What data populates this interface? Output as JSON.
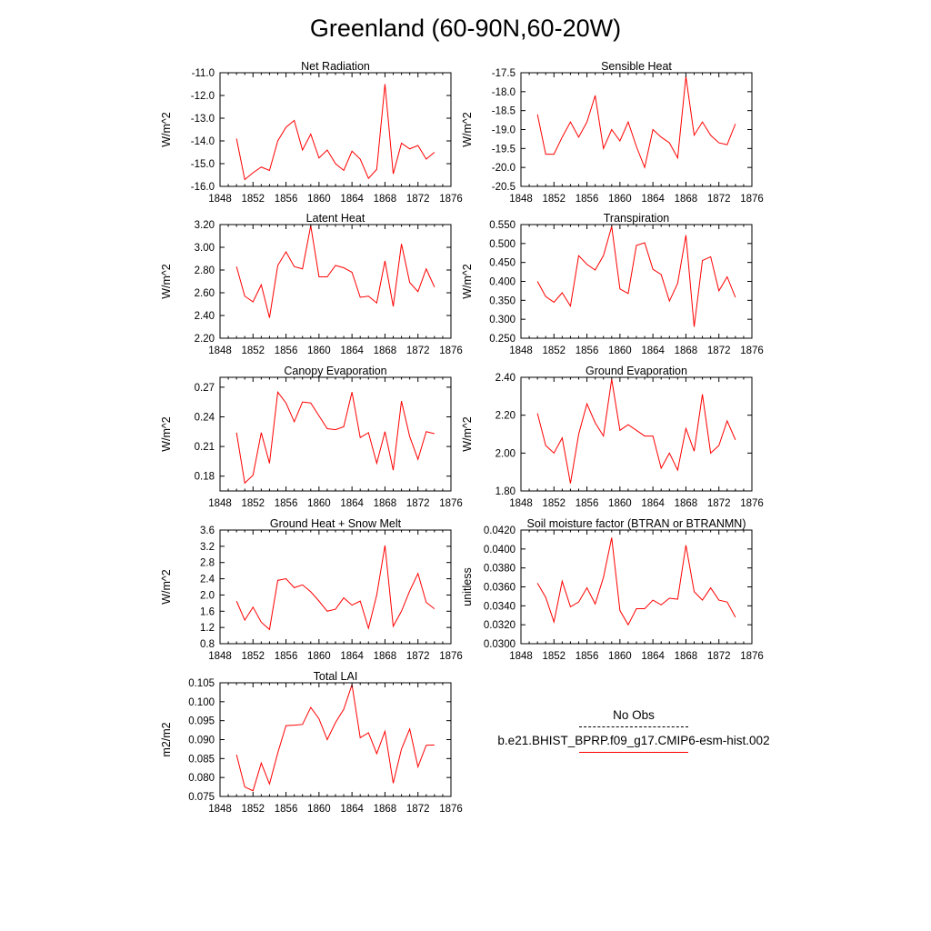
{
  "title": "Greenland (60-90N,60-20W)",
  "legend": {
    "entries": [
      {
        "name": "No Obs",
        "style": "dashed",
        "color": "#000000"
      },
      {
        "name": "b.e21.BHIST_BPRP.f09_g17.CMIP6-esm-hist.002",
        "style": "solid",
        "color": "#ff0000"
      }
    ]
  },
  "chart_data": [
    {
      "type": "line",
      "title": "Net Radiation",
      "ylabel": "W/m^2",
      "xlim": [
        1848,
        1876
      ],
      "xticks": [
        1848,
        1852,
        1856,
        1860,
        1864,
        1868,
        1872,
        1876
      ],
      "ylim": [
        -16.0,
        -11.0
      ],
      "yticks": [
        "-16.0",
        "-15.0",
        "-14.0",
        "-13.0",
        "-12.0",
        "-11.0"
      ],
      "x": [
        1850,
        1851,
        1852,
        1853,
        1854,
        1855,
        1856,
        1857,
        1858,
        1859,
        1860,
        1861,
        1862,
        1863,
        1864,
        1865,
        1866,
        1867,
        1868,
        1869,
        1870,
        1871,
        1872,
        1873,
        1874
      ],
      "series": [
        {
          "values": [
            -13.9,
            -15.7,
            -15.4,
            -15.15,
            -15.3,
            -14.0,
            -13.4,
            -13.1,
            -14.4,
            -13.7,
            -14.75,
            -14.4,
            -15.0,
            -15.3,
            -14.45,
            -14.8,
            -15.65,
            -15.25,
            -11.5,
            -15.45,
            -14.1,
            -14.35,
            -14.2,
            -14.8,
            -14.5
          ],
          "color": "#ff0000"
        }
      ]
    },
    {
      "type": "line",
      "title": "Sensible Heat",
      "ylabel": "W/m^2",
      "xlim": [
        1848,
        1876
      ],
      "xticks": [
        1848,
        1852,
        1856,
        1860,
        1864,
        1868,
        1872,
        1876
      ],
      "ylim": [
        -20.5,
        -17.5
      ],
      "yticks": [
        "-20.5",
        "-20.0",
        "-19.5",
        "-19.0",
        "-18.5",
        "-18.0",
        "-17.5"
      ],
      "x": [
        1850,
        1851,
        1852,
        1853,
        1854,
        1855,
        1856,
        1857,
        1858,
        1859,
        1860,
        1861,
        1862,
        1863,
        1864,
        1865,
        1866,
        1867,
        1868,
        1869,
        1870,
        1871,
        1872,
        1873,
        1874
      ],
      "series": [
        {
          "values": [
            -18.6,
            -19.65,
            -19.65,
            -19.2,
            -18.8,
            -19.2,
            -18.8,
            -18.1,
            -19.5,
            -19.0,
            -19.3,
            -18.8,
            -19.45,
            -20.0,
            -19.0,
            -19.2,
            -19.35,
            -19.75,
            -17.6,
            -19.15,
            -18.8,
            -19.15,
            -19.35,
            -19.4,
            -18.85
          ],
          "color": "#ff0000"
        }
      ]
    },
    {
      "type": "line",
      "title": "Latent Heat",
      "ylabel": "W/m^2",
      "xlim": [
        1848,
        1876
      ],
      "xticks": [
        1848,
        1852,
        1856,
        1860,
        1864,
        1868,
        1872,
        1876
      ],
      "ylim": [
        2.2,
        3.2
      ],
      "yticks": [
        "2.20",
        "2.40",
        "2.60",
        "2.80",
        "3.00",
        "3.20"
      ],
      "x": [
        1850,
        1851,
        1852,
        1853,
        1854,
        1855,
        1856,
        1857,
        1858,
        1859,
        1860,
        1861,
        1862,
        1863,
        1864,
        1865,
        1866,
        1867,
        1868,
        1869,
        1870,
        1871,
        1872,
        1873,
        1874
      ],
      "series": [
        {
          "values": [
            2.83,
            2.57,
            2.52,
            2.67,
            2.38,
            2.84,
            2.96,
            2.83,
            2.81,
            3.19,
            2.74,
            2.74,
            2.84,
            2.82,
            2.78,
            2.56,
            2.57,
            2.51,
            2.88,
            2.48,
            3.03,
            2.69,
            2.61,
            2.81,
            2.65
          ],
          "color": "#ff0000"
        }
      ]
    },
    {
      "type": "line",
      "title": "Transpiration",
      "ylabel": "W/m^2",
      "xlim": [
        1848,
        1876
      ],
      "xticks": [
        1848,
        1852,
        1856,
        1860,
        1864,
        1868,
        1872,
        1876
      ],
      "ylim": [
        0.25,
        0.55
      ],
      "yticks": [
        "0.250",
        "0.300",
        "0.350",
        "0.400",
        "0.450",
        "0.500",
        "0.550"
      ],
      "x": [
        1850,
        1851,
        1852,
        1853,
        1854,
        1855,
        1856,
        1857,
        1858,
        1859,
        1860,
        1861,
        1862,
        1863,
        1864,
        1865,
        1866,
        1867,
        1868,
        1869,
        1870,
        1871,
        1872,
        1873,
        1874
      ],
      "series": [
        {
          "values": [
            0.4,
            0.36,
            0.345,
            0.37,
            0.335,
            0.468,
            0.445,
            0.43,
            0.468,
            0.545,
            0.38,
            0.368,
            0.495,
            0.502,
            0.432,
            0.418,
            0.348,
            0.395,
            0.522,
            0.28,
            0.455,
            0.465,
            0.375,
            0.412,
            0.358
          ],
          "color": "#ff0000"
        }
      ]
    },
    {
      "type": "line",
      "title": "Canopy Evaporation",
      "ylabel": "W/m^2",
      "xlim": [
        1848,
        1876
      ],
      "xticks": [
        1848,
        1852,
        1856,
        1860,
        1864,
        1868,
        1872,
        1876
      ],
      "ylim": [
        0.165,
        0.28
      ],
      "yticks": [
        "0.18",
        "0.21",
        "0.24",
        "0.27"
      ],
      "x": [
        1850,
        1851,
        1852,
        1853,
        1854,
        1855,
        1856,
        1857,
        1858,
        1859,
        1860,
        1861,
        1862,
        1863,
        1864,
        1865,
        1866,
        1867,
        1868,
        1869,
        1870,
        1871,
        1872,
        1873,
        1874
      ],
      "series": [
        {
          "values": [
            0.224,
            0.173,
            0.181,
            0.224,
            0.193,
            0.265,
            0.254,
            0.235,
            0.255,
            0.254,
            0.241,
            0.228,
            0.227,
            0.23,
            0.265,
            0.219,
            0.224,
            0.193,
            0.225,
            0.186,
            0.256,
            0.22,
            0.197,
            0.225,
            0.223
          ],
          "color": "#ff0000"
        }
      ]
    },
    {
      "type": "line",
      "title": "Ground Evaporation",
      "ylabel": "W/m^2",
      "xlim": [
        1848,
        1876
      ],
      "xticks": [
        1848,
        1852,
        1856,
        1860,
        1864,
        1868,
        1872,
        1876
      ],
      "ylim": [
        1.8,
        2.4
      ],
      "yticks": [
        "1.80",
        "2.00",
        "2.20",
        "2.40"
      ],
      "x": [
        1850,
        1851,
        1852,
        1853,
        1854,
        1855,
        1856,
        1857,
        1858,
        1859,
        1860,
        1861,
        1862,
        1863,
        1864,
        1865,
        1866,
        1867,
        1868,
        1869,
        1870,
        1871,
        1872,
        1873,
        1874
      ],
      "series": [
        {
          "values": [
            2.21,
            2.04,
            2.0,
            2.08,
            1.84,
            2.1,
            2.26,
            2.16,
            2.09,
            2.39,
            2.12,
            2.15,
            2.12,
            2.09,
            2.09,
            1.92,
            2.0,
            1.91,
            2.13,
            2.01,
            2.31,
            2.0,
            2.04,
            2.17,
            2.07
          ],
          "color": "#ff0000"
        }
      ]
    },
    {
      "type": "line",
      "title": "Ground Heat + Snow Melt",
      "ylabel": "W/m^2",
      "xlim": [
        1848,
        1876
      ],
      "xticks": [
        1848,
        1852,
        1856,
        1860,
        1864,
        1868,
        1872,
        1876
      ],
      "ylim": [
        0.8,
        3.6
      ],
      "yticks": [
        "0.8",
        "1.2",
        "1.6",
        "2.0",
        "2.4",
        "2.8",
        "3.2",
        "3.6"
      ],
      "x": [
        1850,
        1851,
        1852,
        1853,
        1854,
        1855,
        1856,
        1857,
        1858,
        1859,
        1860,
        1861,
        1862,
        1863,
        1864,
        1865,
        1866,
        1867,
        1868,
        1869,
        1870,
        1871,
        1872,
        1873,
        1874
      ],
      "series": [
        {
          "values": [
            1.85,
            1.38,
            1.7,
            1.33,
            1.15,
            2.36,
            2.4,
            2.18,
            2.25,
            2.08,
            1.85,
            1.6,
            1.65,
            1.93,
            1.75,
            1.85,
            1.18,
            2.0,
            3.22,
            1.23,
            1.6,
            2.1,
            2.53,
            1.82,
            1.66
          ],
          "color": "#ff0000"
        }
      ]
    },
    {
      "type": "line",
      "title": "Soil moisture factor (BTRAN or BTRANMN)",
      "ylabel": "unitless",
      "xlim": [
        1848,
        1876
      ],
      "xticks": [
        1848,
        1852,
        1856,
        1860,
        1864,
        1868,
        1872,
        1876
      ],
      "ylim": [
        0.03,
        0.042
      ],
      "yticks": [
        "0.0300",
        "0.0320",
        "0.0340",
        "0.0360",
        "0.0380",
        "0.0400",
        "0.0420"
      ],
      "x": [
        1850,
        1851,
        1852,
        1853,
        1854,
        1855,
        1856,
        1857,
        1858,
        1859,
        1860,
        1861,
        1862,
        1863,
        1864,
        1865,
        1866,
        1867,
        1868,
        1869,
        1870,
        1871,
        1872,
        1873,
        1874
      ],
      "series": [
        {
          "values": [
            0.0364,
            0.0349,
            0.0323,
            0.0366,
            0.0339,
            0.0344,
            0.0359,
            0.0342,
            0.037,
            0.0412,
            0.0335,
            0.032,
            0.0337,
            0.0337,
            0.0346,
            0.0341,
            0.0348,
            0.0347,
            0.0404,
            0.0355,
            0.0346,
            0.0359,
            0.0346,
            0.0344,
            0.0328
          ],
          "color": "#ff0000"
        }
      ]
    },
    {
      "type": "line",
      "title": "Total LAI",
      "ylabel": "m2/m2",
      "xlim": [
        1848,
        1876
      ],
      "xticks": [
        1848,
        1852,
        1856,
        1860,
        1864,
        1868,
        1872,
        1876
      ],
      "ylim": [
        0.075,
        0.105
      ],
      "yticks": [
        "0.075",
        "0.080",
        "0.085",
        "0.090",
        "0.095",
        "0.100",
        "0.105"
      ],
      "x": [
        1850,
        1851,
        1852,
        1853,
        1854,
        1855,
        1856,
        1857,
        1858,
        1859,
        1860,
        1861,
        1862,
        1863,
        1864,
        1865,
        1866,
        1867,
        1868,
        1869,
        1870,
        1871,
        1872,
        1873,
        1874
      ],
      "series": [
        {
          "values": [
            0.086,
            0.0775,
            0.0765,
            0.0838,
            0.0783,
            0.0865,
            0.0937,
            0.0938,
            0.094,
            0.0985,
            0.0955,
            0.09,
            0.0945,
            0.098,
            0.1045,
            0.0905,
            0.0918,
            0.0863,
            0.0922,
            0.0785,
            0.0875,
            0.0928,
            0.0828,
            0.0885,
            0.0886
          ],
          "color": "#ff0000"
        }
      ]
    }
  ]
}
